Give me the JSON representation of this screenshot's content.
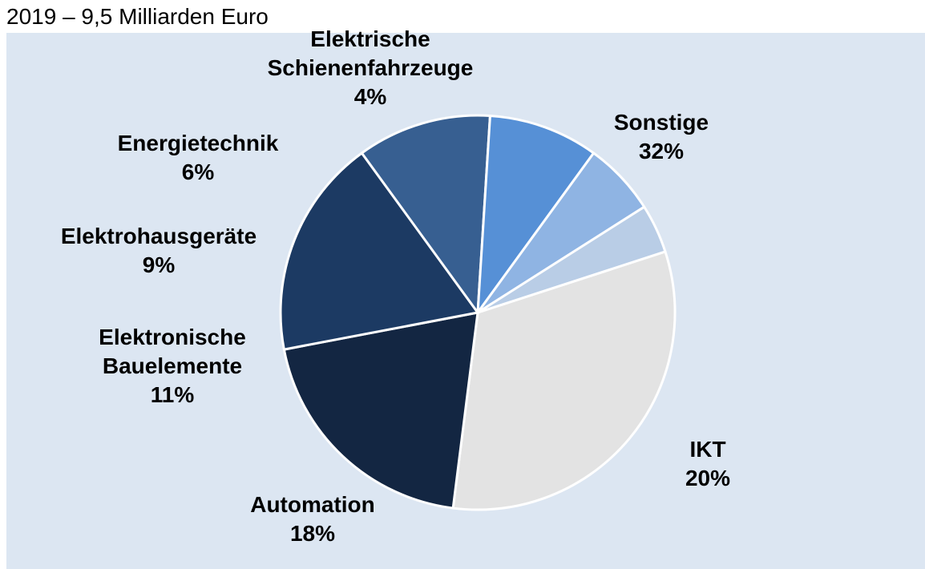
{
  "title": "2019 – 9,5 Milliarden Euro",
  "chart_data": {
    "type": "pie",
    "title": "2019 – 9,5 Milliarden Euro",
    "slices": [
      {
        "label": [
          "Sonstige"
        ],
        "pct_label": "32%",
        "value": 32,
        "color": "#e3e3e3"
      },
      {
        "label": [
          "IKT"
        ],
        "pct_label": "20%",
        "value": 20,
        "color": "#132642"
      },
      {
        "label": [
          "Automation"
        ],
        "pct_label": "18%",
        "value": 18,
        "color": "#1c3a63"
      },
      {
        "label": [
          "Elektronische",
          "Bauelemente"
        ],
        "pct_label": "11%",
        "value": 11,
        "color": "#375f91"
      },
      {
        "label": [
          "Elektrohausgeräte"
        ],
        "pct_label": "9%",
        "value": 9,
        "color": "#5690d6"
      },
      {
        "label": [
          "Energietechnik"
        ],
        "pct_label": "6%",
        "value": 6,
        "color": "#8fb4e3"
      },
      {
        "label": [
          "Elektrische",
          "Schienenfahrzeuge"
        ],
        "pct_label": "4%",
        "value": 4,
        "color": "#b9cde6"
      }
    ]
  }
}
